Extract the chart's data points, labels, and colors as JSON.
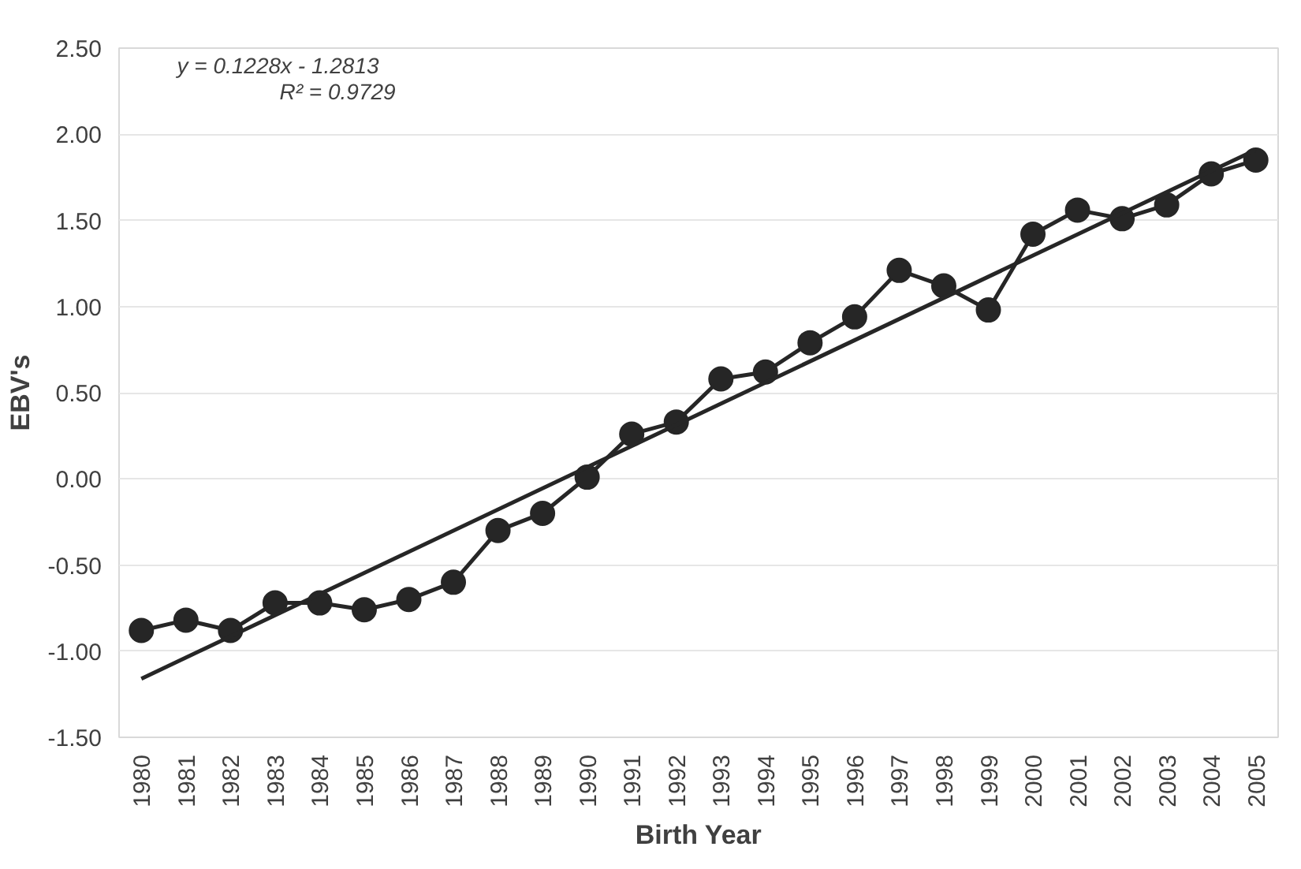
{
  "chart_data": {
    "type": "line",
    "xlabel": "Birth Year",
    "ylabel": "EBV's",
    "categories": [
      "1980",
      "1981",
      "1982",
      "1983",
      "1984",
      "1985",
      "1986",
      "1987",
      "1988",
      "1989",
      "1990",
      "1991",
      "1992",
      "1993",
      "1994",
      "1995",
      "1996",
      "1997",
      "1998",
      "1999",
      "2000",
      "2001",
      "2002",
      "2003",
      "2004",
      "2005"
    ],
    "series": [
      {
        "color": "#262626",
        "marker": "circle",
        "values": [
          -0.88,
          -0.82,
          -0.88,
          -0.72,
          -0.72,
          -0.76,
          -0.7,
          -0.6,
          -0.3,
          -0.2,
          0.01,
          0.26,
          0.33,
          0.58,
          0.62,
          0.79,
          0.94,
          1.21,
          1.12,
          0.98,
          1.42,
          1.56,
          1.51,
          1.59,
          1.77,
          1.85
        ]
      },
      {
        "type": "line",
        "color": "#262626",
        "marker": "none",
        "values": [
          -1.16,
          null,
          null,
          null,
          null,
          null,
          null,
          null,
          null,
          null,
          null,
          null,
          null,
          null,
          null,
          null,
          null,
          null,
          null,
          null,
          null,
          null,
          null,
          null,
          null,
          1.91
        ]
      }
    ],
    "annotations": [
      "y = 0.1228x - 1.2813",
      "R² = 0.9729"
    ],
    "ylim": [
      -1.5,
      2.5
    ],
    "yticks": [
      {
        "value": -1.5,
        "label": "-1.50"
      },
      {
        "value": -1.0,
        "label": "-1.00"
      },
      {
        "value": -0.5,
        "label": "-0.50"
      },
      {
        "value": 0,
        "label": "0.00"
      },
      {
        "value": 0.5,
        "label": "0.50"
      },
      {
        "value": 1.0,
        "label": "1.00"
      },
      {
        "value": 1.5,
        "label": "1.50"
      },
      {
        "value": 2.0,
        "label": "2.00"
      },
      {
        "value": 2.5,
        "label": "2.50"
      }
    ],
    "grid": "y",
    "line_style": "solid"
  }
}
